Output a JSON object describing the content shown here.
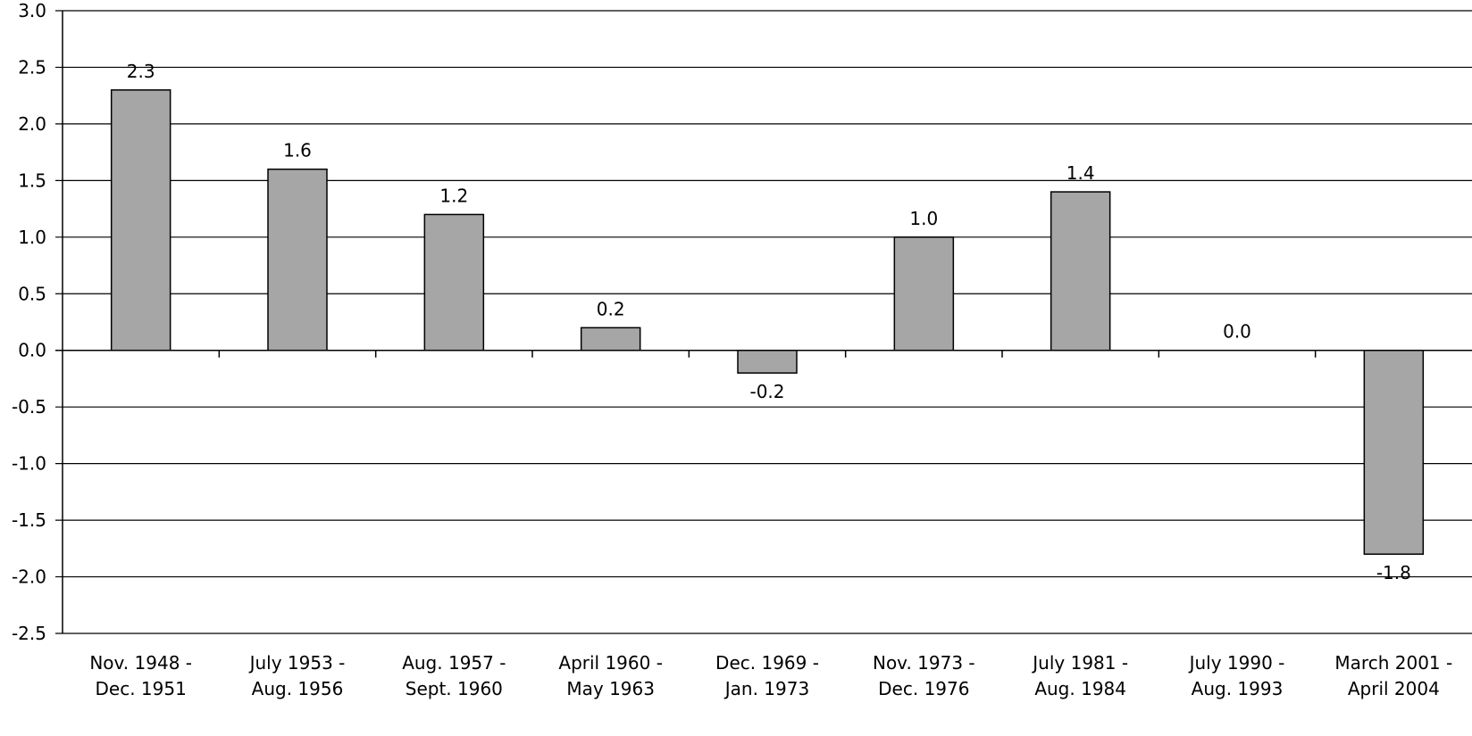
{
  "chart_data": {
    "type": "bar",
    "categories": [
      [
        "Nov. 1948 -",
        "Dec. 1951"
      ],
      [
        "July 1953 -",
        "Aug. 1956"
      ],
      [
        "Aug. 1957 -",
        "Sept. 1960"
      ],
      [
        "April 1960 -",
        "May 1963"
      ],
      [
        "Dec. 1969 -",
        "Jan. 1973"
      ],
      [
        "Nov. 1973 -",
        "Dec. 1976"
      ],
      [
        "July 1981 -",
        "Aug. 1984"
      ],
      [
        "July 1990 -",
        "Aug. 1993"
      ],
      [
        "March 2001 -",
        "April 2004"
      ]
    ],
    "values": [
      2.3,
      1.6,
      1.2,
      0.2,
      -0.2,
      1.0,
      1.4,
      0.0,
      -1.8
    ],
    "data_labels": [
      "2.3",
      "1.6",
      "1.2",
      "0.2",
      "-0.2",
      "1.0",
      "1.4",
      "0.0",
      "-1.8"
    ],
    "title": "",
    "xlabel": "",
    "ylabel": "",
    "ylim": [
      -2.5,
      3.0
    ],
    "yticks": [
      3.0,
      2.5,
      2.0,
      1.5,
      1.0,
      0.5,
      0.0,
      -0.5,
      -1.0,
      -1.5,
      -2.0,
      -2.5
    ],
    "ytick_labels": [
      "3.0",
      "2.5",
      "2.0",
      "1.5",
      "1.0",
      "0.5",
      "0.0",
      "-0.5",
      "-1.0",
      "-1.5",
      "-2.0",
      "-2.5"
    ],
    "grid": true,
    "legend": "none",
    "colors": {
      "bar": "#a6a6a6",
      "outline": "#000000",
      "grid": "#000000"
    }
  }
}
